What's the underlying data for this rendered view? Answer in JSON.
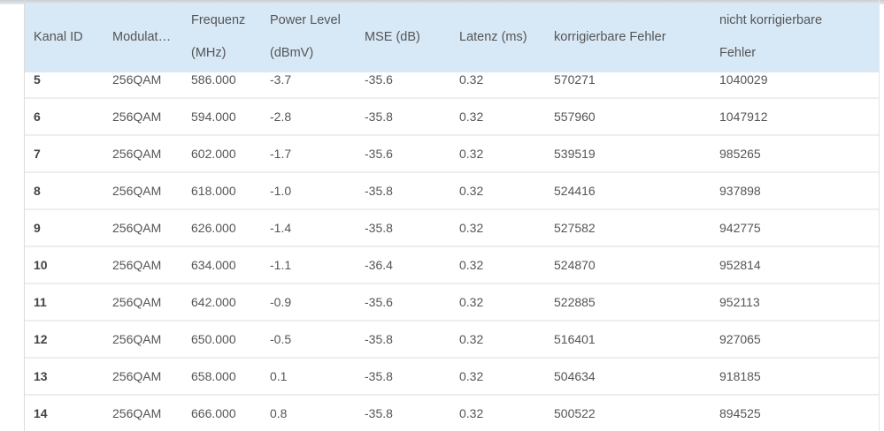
{
  "table": {
    "headers": [
      {
        "line1": "Kanal ID",
        "line2": ""
      },
      {
        "line1": "Modulat…",
        "line2": ""
      },
      {
        "line1": "Frequenz",
        "line2": "(MHz)"
      },
      {
        "line1": "Power Level",
        "line2": "(dBmV)"
      },
      {
        "line1": "MSE (dB)",
        "line2": ""
      },
      {
        "line1": "Latenz (ms)",
        "line2": ""
      },
      {
        "line1": "korrigierbare Fehler",
        "line2": ""
      },
      {
        "line1": "nicht korrigierbare",
        "line2": "Fehler"
      }
    ],
    "rows": [
      [
        "5",
        "256QAM",
        "586.000",
        "-3.7",
        "-35.6",
        "0.32",
        "570271",
        "1040029"
      ],
      [
        "6",
        "256QAM",
        "594.000",
        "-2.8",
        "-35.8",
        "0.32",
        "557960",
        "1047912"
      ],
      [
        "7",
        "256QAM",
        "602.000",
        "-1.7",
        "-35.6",
        "0.32",
        "539519",
        "985265"
      ],
      [
        "8",
        "256QAM",
        "618.000",
        "-1.0",
        "-35.8",
        "0.32",
        "524416",
        "937898"
      ],
      [
        "9",
        "256QAM",
        "626.000",
        "-1.4",
        "-35.8",
        "0.32",
        "527582",
        "942775"
      ],
      [
        "10",
        "256QAM",
        "634.000",
        "-1.1",
        "-36.4",
        "0.32",
        "524870",
        "952814"
      ],
      [
        "11",
        "256QAM",
        "642.000",
        "-0.9",
        "-35.6",
        "0.32",
        "522885",
        "952113"
      ],
      [
        "12",
        "256QAM",
        "650.000",
        "-0.5",
        "-35.8",
        "0.32",
        "516401",
        "927065"
      ],
      [
        "13",
        "256QAM",
        "658.000",
        "0.1",
        "-35.8",
        "0.32",
        "504634",
        "918185"
      ],
      [
        "14",
        "256QAM",
        "666.000",
        "0.8",
        "-35.8",
        "0.32",
        "500522",
        "894525"
      ]
    ]
  },
  "colors": {
    "header_bg": "#d7e8f6",
    "row_divider": "#eceeef"
  }
}
